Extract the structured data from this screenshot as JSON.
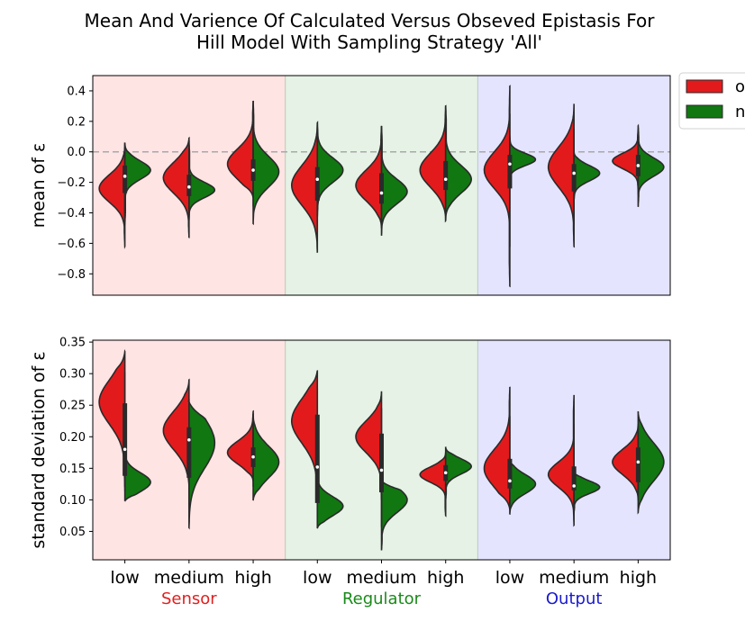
{
  "title_lines": [
    "Mean And Varience Of Calculated Versus Obseved Epistasis For",
    "Hill Model With Sampling Strategy 'All'"
  ],
  "legend": [
    {
      "label": "o",
      "color": "#e31a1c"
    },
    {
      "label": "n",
      "color": "#117711"
    }
  ],
  "groups": [
    {
      "name": "Sensor",
      "bg": "#ffe4e4",
      "label_color": "#e02020"
    },
    {
      "name": "Regulator",
      "bg": "#e5f2e5",
      "label_color": "#1a8a1a"
    },
    {
      "name": "Output",
      "bg": "#e4e4ff",
      "label_color": "#1a1acc"
    }
  ],
  "categories": [
    "low",
    "medium",
    "high",
    "low",
    "medium",
    "high",
    "low",
    "medium",
    "high"
  ],
  "chart_data": [
    {
      "type": "violin",
      "ylabel": "mean of ε",
      "ylim": [
        -0.94,
        0.5
      ],
      "yticks": [
        -0.8,
        -0.6,
        -0.4,
        -0.2,
        0.0,
        0.2,
        0.4
      ],
      "ytick_labels": [
        "−0.8",
        "−0.6",
        "−0.4",
        "−0.2",
        "0.0",
        "0.2",
        "0.4"
      ],
      "reference_line": 0.0,
      "violins": [
        {
          "o": {
            "min": -0.62,
            "max": 0.06,
            "mode": -0.24,
            "sd": 0.09
          },
          "n": {
            "min": -0.47,
            "max": 0.06,
            "mode": -0.12,
            "sd": 0.06
          },
          "median": -0.16,
          "q1": -0.27,
          "q3": -0.09
        },
        {
          "o": {
            "min": -0.56,
            "max": 0.09,
            "mode": -0.17,
            "sd": 0.1
          },
          "n": {
            "min": -0.44,
            "max": 0.06,
            "mode": -0.25,
            "sd": 0.05
          },
          "median": -0.23,
          "q1": -0.29,
          "q3": -0.15
        },
        {
          "o": {
            "min": -0.3,
            "max": 0.33,
            "mode": -0.08,
            "sd": 0.1
          },
          "n": {
            "min": -0.47,
            "max": 0.33,
            "mode": -0.13,
            "sd": 0.1
          },
          "median": -0.12,
          "q1": -0.19,
          "q3": -0.05
        },
        {
          "o": {
            "min": -0.66,
            "max": 0.19,
            "mode": -0.22,
            "sd": 0.13
          },
          "n": {
            "min": -0.42,
            "max": 0.19,
            "mode": -0.12,
            "sd": 0.08
          },
          "median": -0.18,
          "q1": -0.32,
          "q3": -0.1
        },
        {
          "o": {
            "min": -0.5,
            "max": 0.17,
            "mode": -0.22,
            "sd": 0.1
          },
          "n": {
            "min": -0.55,
            "max": 0.17,
            "mode": -0.26,
            "sd": 0.08
          },
          "median": -0.27,
          "q1": -0.34,
          "q3": -0.14
        },
        {
          "o": {
            "min": -0.45,
            "max": 0.3,
            "mode": -0.12,
            "sd": 0.11
          },
          "n": {
            "min": -0.45,
            "max": 0.3,
            "mode": -0.18,
            "sd": 0.09
          },
          "median": -0.18,
          "q1": -0.25,
          "q3": -0.06
        },
        {
          "o": {
            "min": -0.88,
            "max": 0.43,
            "mode": -0.12,
            "sd": 0.12
          },
          "n": {
            "min": -0.22,
            "max": 0.1,
            "mode": -0.05,
            "sd": 0.04
          },
          "median": -0.08,
          "q1": -0.24,
          "q3": -0.02
        },
        {
          "o": {
            "min": -0.62,
            "max": 0.31,
            "mode": -0.1,
            "sd": 0.13
          },
          "n": {
            "min": -0.32,
            "max": 0.0,
            "mode": -0.14,
            "sd": 0.05
          },
          "median": -0.14,
          "q1": -0.26,
          "q3": -0.08
        },
        {
          "o": {
            "min": -0.25,
            "max": 0.15,
            "mode": -0.06,
            "sd": 0.05
          },
          "n": {
            "min": -0.36,
            "max": 0.17,
            "mode": -0.1,
            "sd": 0.06
          },
          "median": -0.09,
          "q1": -0.16,
          "q3": -0.02
        }
      ]
    },
    {
      "type": "violin",
      "ylabel": "standard deviation of ε",
      "ylim": [
        0.005,
        0.353
      ],
      "yticks": [
        0.05,
        0.1,
        0.15,
        0.2,
        0.25,
        0.3,
        0.35
      ],
      "ytick_labels": [
        "0.05",
        "0.10",
        "0.15",
        "0.20",
        "0.25",
        "0.30",
        "0.35"
      ],
      "violins": [
        {
          "o": {
            "min": 0.12,
            "max": 0.335,
            "mode": 0.255,
            "sd": 0.035
          },
          "n": {
            "min": 0.098,
            "max": 0.18,
            "mode": 0.128,
            "sd": 0.015
          },
          "median": 0.18,
          "q1": 0.138,
          "q3": 0.253
        },
        {
          "o": {
            "min": 0.12,
            "max": 0.29,
            "mode": 0.21,
            "sd": 0.03
          },
          "n": {
            "min": 0.056,
            "max": 0.255,
            "mode": 0.19,
            "sd": 0.04
          },
          "median": 0.195,
          "q1": 0.135,
          "q3": 0.215
        },
        {
          "o": {
            "min": 0.13,
            "max": 0.24,
            "mode": 0.175,
            "sd": 0.018
          },
          "n": {
            "min": 0.1,
            "max": 0.235,
            "mode": 0.16,
            "sd": 0.025
          },
          "median": 0.168,
          "q1": 0.152,
          "q3": 0.183
        },
        {
          "o": {
            "min": 0.1,
            "max": 0.305,
            "mode": 0.225,
            "sd": 0.035
          },
          "n": {
            "min": 0.055,
            "max": 0.135,
            "mode": 0.09,
            "sd": 0.015
          },
          "median": 0.152,
          "q1": 0.095,
          "q3": 0.235
        },
        {
          "o": {
            "min": 0.1,
            "max": 0.272,
            "mode": 0.2,
            "sd": 0.025
          },
          "n": {
            "min": 0.02,
            "max": 0.13,
            "mode": 0.1,
            "sd": 0.02
          },
          "median": 0.147,
          "q1": 0.112,
          "q3": 0.205
        },
        {
          "o": {
            "min": 0.075,
            "max": 0.175,
            "mode": 0.14,
            "sd": 0.012
          },
          "n": {
            "min": 0.1,
            "max": 0.183,
            "mode": 0.153,
            "sd": 0.012
          },
          "median": 0.143,
          "q1": 0.13,
          "q3": 0.155
        },
        {
          "o": {
            "min": 0.085,
            "max": 0.278,
            "mode": 0.15,
            "sd": 0.03
          },
          "n": {
            "min": 0.078,
            "max": 0.165,
            "mode": 0.125,
            "sd": 0.015
          },
          "median": 0.13,
          "q1": 0.118,
          "q3": 0.165
        },
        {
          "o": {
            "min": 0.06,
            "max": 0.265,
            "mode": 0.14,
            "sd": 0.02
          },
          "n": {
            "min": 0.08,
            "max": 0.145,
            "mode": 0.12,
            "sd": 0.01
          },
          "median": 0.122,
          "q1": 0.115,
          "q3": 0.153
        },
        {
          "o": {
            "min": 0.1,
            "max": 0.22,
            "mode": 0.16,
            "sd": 0.02
          },
          "n": {
            "min": 0.08,
            "max": 0.24,
            "mode": 0.16,
            "sd": 0.03
          },
          "median": 0.16,
          "q1": 0.128,
          "q3": 0.183
        }
      ]
    }
  ]
}
